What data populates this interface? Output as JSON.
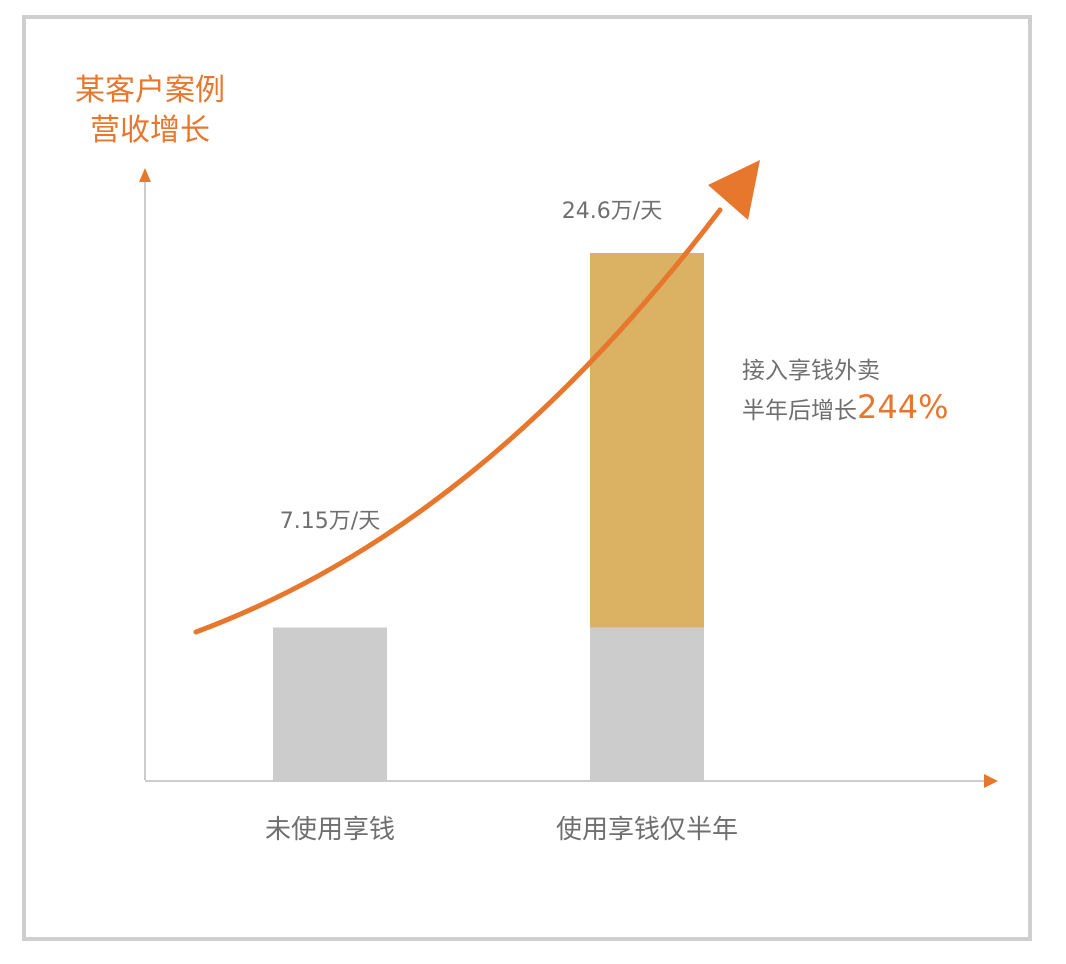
{
  "chart_data": {
    "type": "bar",
    "title_lines": [
      "某客户案例",
      "营收增长"
    ],
    "categories": [
      "未使用享钱",
      "使用享钱仅半年"
    ],
    "series": [
      {
        "values": [
          7.15,
          7.15
        ],
        "color": "#cccccc"
      },
      {
        "values": [
          0,
          17.45
        ],
        "color": "#dbb264"
      }
    ],
    "totals": [
      7.15,
      24.6
    ],
    "value_labels": [
      "7.15万/天",
      "24.6万/天"
    ],
    "annotation": {
      "line1": "接入享钱外卖",
      "line2": "半年后增长",
      "highlight": "244%"
    },
    "ylim": [
      0,
      28
    ],
    "accent_color": "#e8772e",
    "axis_color": "#cccccc",
    "frame_color": "#cfcfcf",
    "xlabel": "",
    "ylabel": ""
  }
}
